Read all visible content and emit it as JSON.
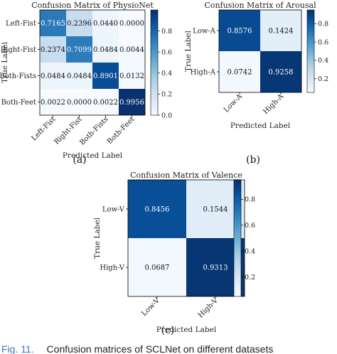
{
  "chart_data": [
    {
      "type": "heatmap",
      "title": "Confusion Matrix of PhysioNet",
      "xlabel": "Predicted Label",
      "ylabel": "True Label",
      "classes": [
        "Left-Fist",
        "Right-Fist",
        "Both-Fists",
        "Both-Feet"
      ],
      "matrix": [
        [
          "0.7165",
          "0.2396",
          "0.0440",
          "0.0000"
        ],
        [
          "0.2374",
          "0.7099",
          "0.0484",
          "0.0044"
        ],
        [
          "0.0484",
          "0.0484",
          "0.8901",
          "0.0132"
        ],
        [
          "0.0022",
          "0.0000",
          "0.0022",
          "0.9956"
        ]
      ],
      "colorbar": {
        "range": [
          0,
          1.0
        ],
        "ticks": [
          "0.0",
          "0.2",
          "0.4",
          "0.6",
          "0.8"
        ]
      },
      "colormap": "Blues",
      "panel_label": "(a)"
    },
    {
      "type": "heatmap",
      "title": "Confusion Matrix of Arousal",
      "xlabel": "Predicted Label",
      "ylabel": "True Label",
      "classes": [
        "Low-A",
        "High-A"
      ],
      "matrix": [
        [
          "0.8576",
          "0.1424"
        ],
        [
          "0.0742",
          "0.9258"
        ]
      ],
      "colorbar": {
        "range": [
          0.05,
          0.95
        ],
        "ticks": [
          "0.2",
          "0.4",
          "0.6",
          "0.8"
        ]
      },
      "colormap": "Blues",
      "panel_label": "(b)"
    },
    {
      "type": "heatmap",
      "title": "Confusion Matrix of Valence",
      "xlabel": "Predicted Label",
      "ylabel": "True Label",
      "classes": [
        "Low-V",
        "High-V"
      ],
      "matrix": [
        [
          "0.8456",
          "0.1544"
        ],
        [
          "0.0687",
          "0.9313"
        ]
      ],
      "colorbar": {
        "range": [
          0.05,
          0.95
        ],
        "ticks": [
          "0.2",
          "0.4",
          "0.6",
          "0.8"
        ]
      },
      "colormap": "Blues",
      "panel_label": "(c)"
    }
  ],
  "caption": {
    "figure_label": "Fig. 11.",
    "text": "Confusion matrices of SCLNet on different datasets",
    "label_color": "#3a78c3",
    "text_color": "#222222"
  }
}
